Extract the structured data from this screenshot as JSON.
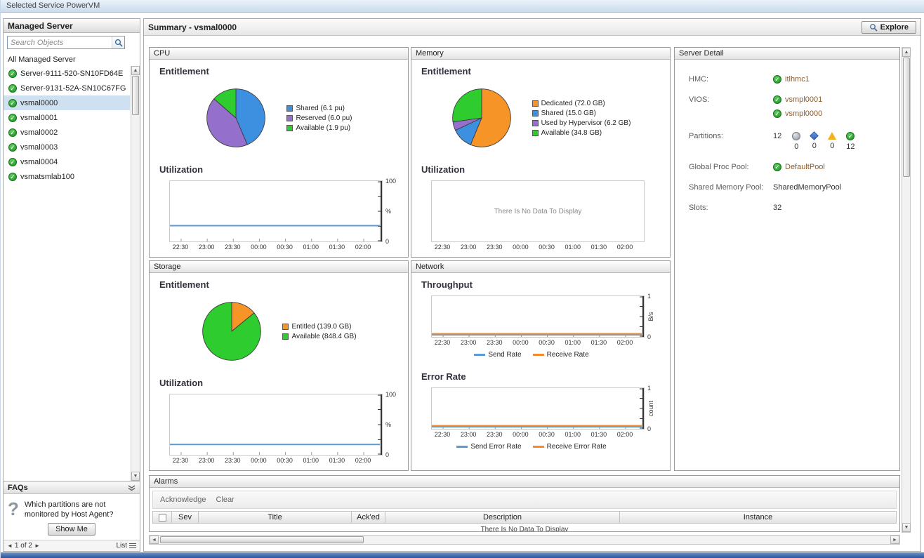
{
  "window": {
    "title": "Selected Service PowerVM"
  },
  "sidebar": {
    "title": "Managed Server",
    "search": {
      "placeholder": "Search Objects"
    },
    "group_label": "All Managed Server",
    "servers": [
      "Server-9111-520-SN10FD64E",
      "Server-9131-52A-SN10C67FG",
      "vsmal0000",
      "vsmal0001",
      "vsmal0002",
      "vsmal0003",
      "vsmal0004",
      "vsmatsmlab100"
    ],
    "selected_server": "vsmal0000",
    "faq": {
      "title": "FAQs",
      "question": "Which partitions are not monitored by Host Agent?",
      "show_me": "Show Me",
      "page": "1 of 2",
      "list": "List"
    }
  },
  "main": {
    "title": "Summary -  vsmal0000",
    "explore": "Explore"
  },
  "panels": {
    "cpu": {
      "title": "CPU",
      "entitlement": "Entitlement",
      "utilization": "Utilization"
    },
    "memory": {
      "title": "Memory",
      "entitlement": "Entitlement",
      "utilization": "Utilization"
    },
    "storage": {
      "title": "Storage",
      "entitlement": "Entitlement",
      "utilization": "Utilization"
    },
    "network": {
      "title": "Network",
      "throughput": "Throughput",
      "error_rate": "Error Rate"
    }
  },
  "chart_data": [
    {
      "id": "cpu_entitlement",
      "type": "pie",
      "title": "CPU Entitlement",
      "labels": [
        "Shared (6.1 pu)",
        "Reserved (6.0 pu)",
        "Available (1.9 pu)"
      ],
      "values": [
        6.1,
        6.0,
        1.9
      ],
      "colors": [
        "#3d8fe0",
        "#9470cc",
        "#2ecc2e"
      ]
    },
    {
      "id": "cpu_utilization",
      "type": "line",
      "title": "CPU Utilization",
      "x": [
        "22:30",
        "23:00",
        "23:30",
        "00:00",
        "00:30",
        "01:00",
        "01:30",
        "02:00"
      ],
      "ylim": [
        0,
        100
      ],
      "ylabel": "%",
      "series": [
        {
          "name": "Utilization",
          "color": "#5b9bd5",
          "values": [
            25,
            25,
            25,
            25,
            25,
            25,
            25,
            25
          ]
        }
      ]
    },
    {
      "id": "memory_entitlement",
      "type": "pie",
      "title": "Memory Entitlement",
      "labels": [
        "Dedicated (72.0 GB)",
        "Shared (15.0 GB)",
        "Used by Hypervisor (6.2 GB)",
        "Available (34.8 GB)"
      ],
      "values": [
        72.0,
        15.0,
        6.2,
        34.8
      ],
      "colors": [
        "#f79428",
        "#3d8fe0",
        "#9470cc",
        "#2ecc2e"
      ]
    },
    {
      "id": "memory_utilization",
      "type": "empty",
      "title": "Memory Utilization",
      "message": "There Is No Data To Display",
      "x": [
        "22:30",
        "23:00",
        "23:30",
        "00:00",
        "00:30",
        "01:00",
        "01:30",
        "02:00"
      ]
    },
    {
      "id": "storage_entitlement",
      "type": "pie",
      "title": "Storage Entitlement",
      "labels": [
        "Entitled (139.0 GB)",
        "Available (848.4 GB)"
      ],
      "values": [
        139.0,
        848.4
      ],
      "colors": [
        "#f79428",
        "#2ecc2e"
      ]
    },
    {
      "id": "storage_utilization",
      "type": "line",
      "title": "Storage Utilization",
      "x": [
        "22:30",
        "23:00",
        "23:30",
        "00:00",
        "00:30",
        "01:00",
        "01:30",
        "02:00"
      ],
      "ylim": [
        0,
        100
      ],
      "ylabel": "%",
      "series": [
        {
          "name": "Utilization",
          "color": "#5b9bd5",
          "values": [
            15,
            15,
            15,
            15,
            15,
            15,
            15,
            15
          ]
        }
      ]
    },
    {
      "id": "network_throughput",
      "type": "line",
      "title": "Network Throughput",
      "x": [
        "22:30",
        "23:00",
        "23:30",
        "00:00",
        "00:30",
        "01:00",
        "01:30",
        "02:00"
      ],
      "ylim": [
        0,
        1
      ],
      "ylabel": "B/s",
      "series": [
        {
          "name": "Send Rate",
          "color": "#5b9bd5",
          "values": [
            0,
            0,
            0,
            0,
            0,
            0,
            0,
            0
          ]
        },
        {
          "name": "Receive Rate",
          "color": "#f78a28",
          "values": [
            0,
            0,
            0,
            0,
            0,
            0,
            0,
            0
          ]
        }
      ]
    },
    {
      "id": "network_error_rate",
      "type": "line",
      "title": "Network Error Rate",
      "x": [
        "22:30",
        "23:00",
        "23:30",
        "00:00",
        "00:30",
        "01:00",
        "01:30",
        "02:00"
      ],
      "ylim": [
        0,
        1
      ],
      "ylabel": "count",
      "series": [
        {
          "name": "Send Error Rate",
          "color": "#5b9bd5",
          "values": [
            0,
            0,
            0,
            0,
            0,
            0,
            0,
            0
          ]
        },
        {
          "name": "Receive Error Rate",
          "color": "#f78a28",
          "values": [
            0,
            0,
            0,
            0,
            0,
            0,
            0,
            0
          ]
        }
      ]
    }
  ],
  "server_detail": {
    "title": "Server Detail",
    "hmc_label": "HMC:",
    "hmc_value": "itlhmc1",
    "vios_label": "VIOS:",
    "vios_values": [
      "vsmpl0001",
      "vsmpl0000"
    ],
    "partitions": {
      "label": "Partitions:",
      "total": "12",
      "statuses": [
        {
          "icon": "unknown",
          "count": "0"
        },
        {
          "icon": "fatal",
          "count": "0"
        },
        {
          "icon": "warning",
          "count": "0"
        },
        {
          "icon": "normal",
          "count": "12"
        }
      ]
    },
    "global_proc_pool_label": "Global Proc Pool:",
    "global_proc_pool_value": "DefaultPool",
    "shared_memory_pool_label": "Shared Memory Pool:",
    "shared_memory_pool_value": "SharedMemoryPool",
    "slots_label": "Slots:",
    "slots_value": "32"
  },
  "alarms": {
    "title": "Alarms",
    "actions": [
      "Acknowledge",
      "Clear"
    ],
    "columns": [
      "Sev",
      "Title",
      "Ack'ed",
      "Description",
      "Instance"
    ],
    "empty_message": "There Is No Data To Display"
  }
}
